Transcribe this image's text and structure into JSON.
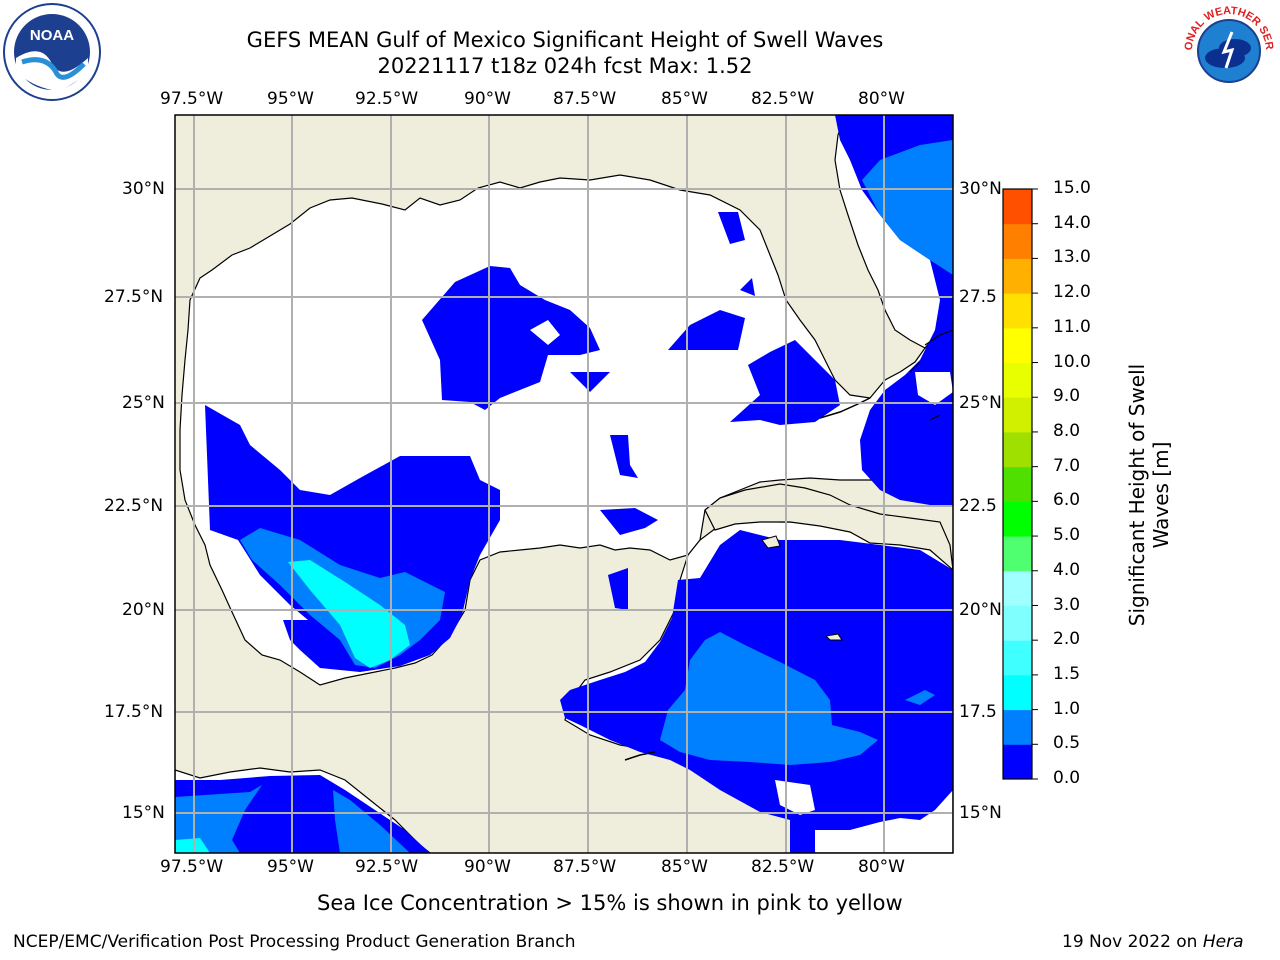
{
  "title_line1": "GEFS MEAN Gulf of Mexico Significant Height of Swell Waves",
  "title_line2": "20221117 t18z 024h fcst   Max: 1.52",
  "lon_labels": [
    "97.5°W",
    "95°W",
    "92.5°W",
    "90°W",
    "87.5°W",
    "85°W",
    "82.5°W",
    "80°W"
  ],
  "lat_labels_left": [
    "30°N",
    "27.5°N",
    "25°N",
    "22.5°N",
    "20°N",
    "17.5°N",
    "15°N"
  ],
  "lat_labels_right": [
    "30°N",
    "27.5",
    "25°N",
    "22.5",
    "20°N",
    "17.5",
    "15°N"
  ],
  "colorbar": {
    "label_line1": "Significant Height of Swell",
    "label_line2": "Waves [m]",
    "ticks": [
      "0.0",
      "0.5",
      "1.0",
      "1.5",
      "2.0",
      "3.0",
      "4.0",
      "5.0",
      "6.0",
      "7.0",
      "8.0",
      "9.0",
      "10.0",
      "11.0",
      "12.0",
      "13.0",
      "14.0",
      "15.0"
    ],
    "colors": [
      "#0000ff",
      "#0080ff",
      "#00ffff",
      "#40ffff",
      "#80ffff",
      "#a0ffff",
      "#50ff70",
      "#00ff00",
      "#50e000",
      "#a0e000",
      "#d0f000",
      "#e8ff00",
      "#ffff00",
      "#ffe000",
      "#ffb000",
      "#ff8000",
      "#ff5000",
      "#ff2000",
      "#ff0000"
    ]
  },
  "note": "Sea Ice Concentration > 15% is shown in pink to yellow",
  "footer_left": "NCEP/EMC/Verification Post Processing Product Generation Branch",
  "footer_right_date": "19 Nov 2022 on ",
  "footer_right_host": "Hera",
  "logos": {
    "left": "NOAA",
    "right": "NATIONAL WEATHER SERVICE"
  },
  "colors": {
    "land": "#efeedc",
    "ocean": "#ffffff",
    "grid": "#b0b0b0",
    "swell_low": "#0000ff",
    "swell_mid": "#0080ff",
    "swell_high": "#00ffff"
  }
}
